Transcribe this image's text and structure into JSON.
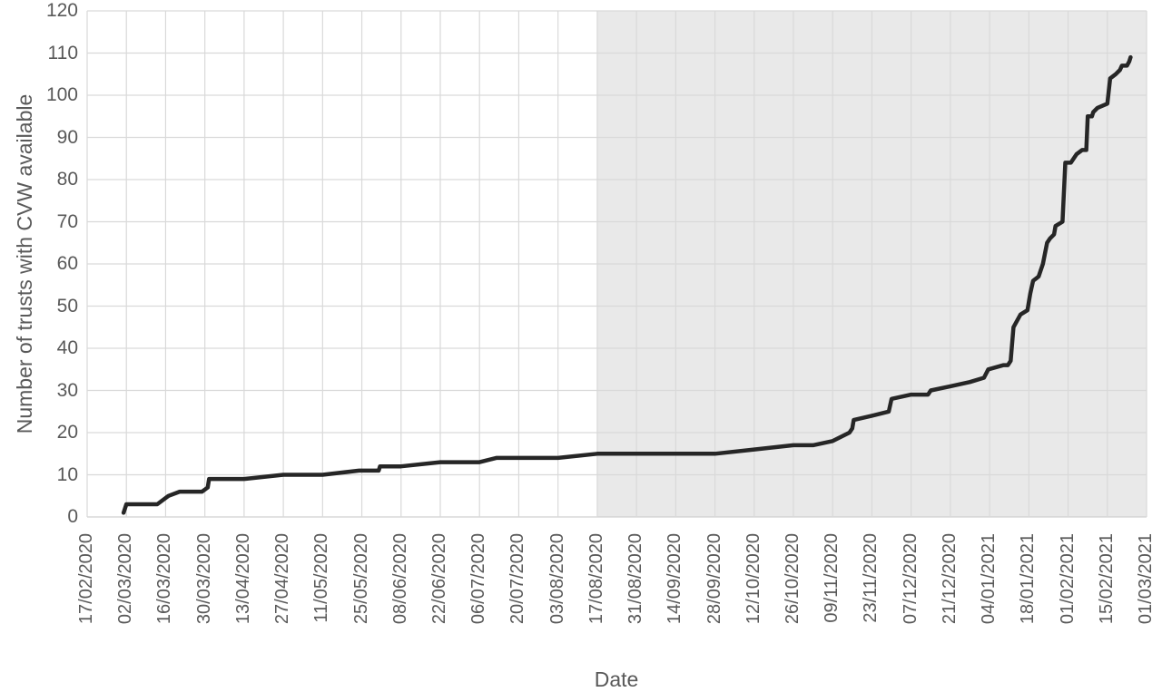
{
  "figure": {
    "background_color": "#ffffff",
    "text_color": "#595959",
    "grid_color": "#d9d9d9",
    "axis_line_color": "#d0d0d0",
    "shade_color": "#e9e9e9",
    "line_color": "#262626"
  },
  "chart_data": {
    "type": "line",
    "title": "",
    "xlabel": "Date",
    "ylabel": "Number of trusts with CVW available",
    "ylim": [
      0,
      120
    ],
    "ytick_step": 10,
    "ytick_labels": [
      "0",
      "10",
      "20",
      "30",
      "40",
      "50",
      "60",
      "70",
      "80",
      "90",
      "100",
      "110",
      "120"
    ],
    "x_tick_interval_days": 14,
    "x_domain_days": [
      0,
      378
    ],
    "x_tick_labels": [
      "17/02/2020",
      "02/03/2020",
      "16/03/2020",
      "30/03/2020",
      "13/04/2020",
      "27/04/2020",
      "11/05/2020",
      "25/05/2020",
      "08/06/2020",
      "22/06/2020",
      "06/07/2020",
      "20/07/2020",
      "03/08/2020",
      "17/08/2020",
      "31/08/2020",
      "14/09/2020",
      "28/09/2020",
      "12/10/2020",
      "26/10/2020",
      "09/11/2020",
      "23/11/2020",
      "07/12/2020",
      "21/12/2020",
      "04/01/2021",
      "18/01/2021",
      "01/02/2021",
      "15/02/2021",
      "01/03/2021"
    ],
    "grid": true,
    "legend": false,
    "shaded_region": {
      "from_label": "17/08/2020",
      "to_label": "01/03/2021",
      "from_day": 182,
      "to_day": 378
    },
    "series": [
      {
        "points_day_value": [
          [
            13,
            1
          ],
          [
            14,
            3
          ],
          [
            25,
            3
          ],
          [
            29,
            5
          ],
          [
            33,
            6
          ],
          [
            41,
            6
          ],
          [
            43,
            7
          ],
          [
            43.5,
            9
          ],
          [
            56,
            9
          ],
          [
            70,
            10
          ],
          [
            84,
            10
          ],
          [
            97,
            11
          ],
          [
            104,
            11
          ],
          [
            104.5,
            12
          ],
          [
            112,
            12
          ],
          [
            126,
            13
          ],
          [
            140,
            13
          ],
          [
            146,
            14
          ],
          [
            154,
            14
          ],
          [
            168,
            14
          ],
          [
            182,
            15
          ],
          [
            196,
            15
          ],
          [
            210,
            15
          ],
          [
            224,
            15
          ],
          [
            238,
            16
          ],
          [
            252,
            17
          ],
          [
            259,
            17
          ],
          [
            266,
            18
          ],
          [
            272,
            20
          ],
          [
            273,
            21
          ],
          [
            273.5,
            23
          ],
          [
            280,
            24
          ],
          [
            286,
            25
          ],
          [
            287,
            28
          ],
          [
            294,
            29
          ],
          [
            300,
            29
          ],
          [
            301,
            30
          ],
          [
            308,
            31
          ],
          [
            315,
            32
          ],
          [
            320,
            33
          ],
          [
            321.5,
            35
          ],
          [
            327,
            36
          ],
          [
            328.5,
            36
          ],
          [
            329.5,
            37
          ],
          [
            330.5,
            45
          ],
          [
            333,
            48
          ],
          [
            335.5,
            49
          ],
          [
            336.5,
            53
          ],
          [
            337.5,
            56
          ],
          [
            339.5,
            57
          ],
          [
            341,
            60
          ],
          [
            342.5,
            65
          ],
          [
            343.5,
            66
          ],
          [
            345,
            67
          ],
          [
            345.5,
            69
          ],
          [
            348,
            70
          ],
          [
            349,
            84
          ],
          [
            351,
            84
          ],
          [
            353,
            86
          ],
          [
            355,
            87
          ],
          [
            356.5,
            87
          ],
          [
            357,
            95
          ],
          [
            358.5,
            95
          ],
          [
            359,
            96
          ],
          [
            360.5,
            97
          ],
          [
            364,
            98
          ],
          [
            365,
            104
          ],
          [
            367,
            105
          ],
          [
            368.5,
            106
          ],
          [
            369.2,
            107
          ],
          [
            371,
            107
          ],
          [
            371.8,
            108
          ],
          [
            372.3,
            109
          ]
        ]
      }
    ]
  }
}
